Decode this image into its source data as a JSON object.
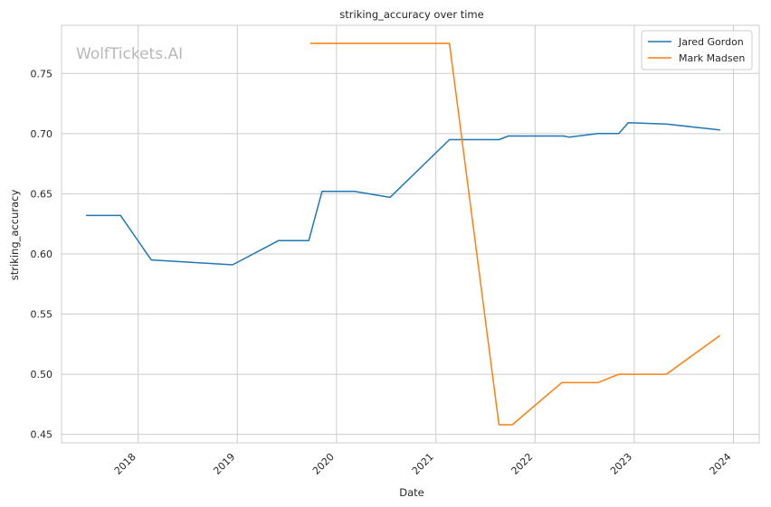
{
  "chart_data": {
    "type": "line",
    "title": "striking_accuracy over time",
    "xlabel": "Date",
    "ylabel": "striking_accuracy",
    "watermark": "WolfTickets.AI",
    "xlim": [
      "2017-03-25",
      "2024-04-05"
    ],
    "ylim": [
      0.443,
      0.79
    ],
    "x_ticks": [
      "2018",
      "2019",
      "2020",
      "2021",
      "2022",
      "2023",
      "2024"
    ],
    "y_ticks": [
      "0.45",
      "0.50",
      "0.55",
      "0.60",
      "0.65",
      "0.70",
      "0.75"
    ],
    "grid": true,
    "legend_position": "top-right",
    "series": [
      {
        "name": "Jared Gordon",
        "color": "#1f77b4",
        "points": [
          [
            "2017-06-25",
            0.632
          ],
          [
            "2017-10-28",
            0.632
          ],
          [
            "2018-02-18",
            0.595
          ],
          [
            "2018-12-15",
            0.591
          ],
          [
            "2019-06-01",
            0.611
          ],
          [
            "2019-09-21",
            0.611
          ],
          [
            "2019-11-09",
            0.652
          ],
          [
            "2020-03-07",
            0.652
          ],
          [
            "2020-07-16",
            0.647
          ],
          [
            "2021-02-20",
            0.695
          ],
          [
            "2021-08-21",
            0.695
          ],
          [
            "2021-09-25",
            0.698
          ],
          [
            "2022-04-16",
            0.698
          ],
          [
            "2022-05-07",
            0.697
          ],
          [
            "2022-08-20",
            0.7
          ],
          [
            "2022-11-05",
            0.7
          ],
          [
            "2022-12-10",
            0.709
          ],
          [
            "2023-04-29",
            0.708
          ],
          [
            "2023-11-11",
            0.703
          ]
        ]
      },
      {
        "name": "Mark Madsen",
        "color": "#ff7f0e",
        "points": [
          [
            "2019-09-28",
            0.775
          ],
          [
            "2021-02-20",
            0.775
          ],
          [
            "2021-08-21",
            0.458
          ],
          [
            "2021-10-09",
            0.458
          ],
          [
            "2022-04-09",
            0.493
          ],
          [
            "2022-08-20",
            0.493
          ],
          [
            "2022-11-05",
            0.5
          ],
          [
            "2023-04-29",
            0.5
          ],
          [
            "2023-11-11",
            0.532
          ]
        ]
      }
    ]
  }
}
